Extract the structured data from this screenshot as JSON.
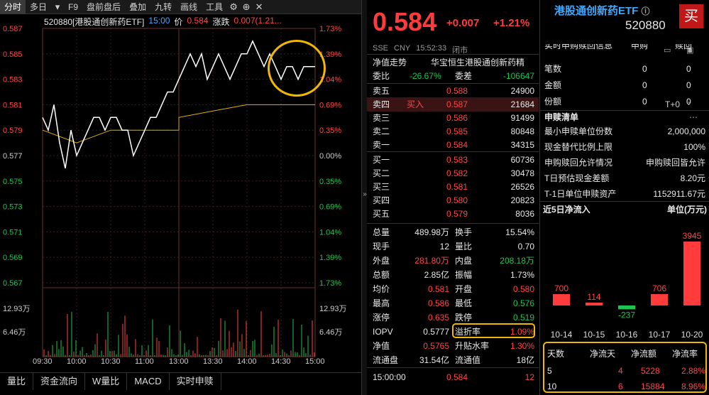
{
  "toolbar": {
    "items": [
      "分时",
      "多日",
      "F9",
      "盘前盘后",
      "叠加",
      "九转",
      "画线",
      "工具"
    ],
    "active": "分时"
  },
  "chart_header": {
    "name": "520880[港股通创新药ETF]",
    "time": "15:00",
    "price_label": "价",
    "price": "0.584",
    "change_label": "涨跌",
    "change": "0.007(1.21..."
  },
  "chart_data": {
    "type": "line",
    "x_ticks": [
      "09:30",
      "10:00",
      "10:30",
      "11:00",
      "13:00",
      "13:30",
      "14:00",
      "14:30",
      "15:00"
    ],
    "y_left_ticks": [
      "0.587",
      "0.585",
      "0.583",
      "0.581",
      "0.579",
      "0.577",
      "0.575",
      "0.573",
      "0.571",
      "0.569",
      "0.567"
    ],
    "y_right_ticks": [
      "1.73%",
      "1.39%",
      "1.04%",
      "0.69%",
      "0.35%",
      "0.00%",
      "0.35%",
      "0.69%",
      "1.04%",
      "1.39%",
      "1.73%"
    ],
    "ylim": [
      0.567,
      0.587
    ],
    "prev_close": 0.577,
    "volume_ticks": [
      "12.93万",
      "6.46万"
    ],
    "series": [
      {
        "name": "价",
        "color": "#ffffff",
        "x": [
          "09:30",
          "09:35",
          "09:40",
          "09:45",
          "09:50",
          "09:55",
          "10:00",
          "10:05",
          "10:10",
          "10:15",
          "10:20",
          "10:25",
          "10:30",
          "10:35",
          "10:40",
          "10:45",
          "10:50",
          "10:55",
          "11:00",
          "11:05",
          "11:10",
          "11:15",
          "11:20",
          "11:25",
          "13:00",
          "13:05",
          "13:10",
          "13:15",
          "13:20",
          "13:25",
          "13:30",
          "13:35",
          "13:40",
          "13:45",
          "13:50",
          "13:55",
          "14:00",
          "14:05",
          "14:10",
          "14:15",
          "14:20",
          "14:25",
          "14:30",
          "14:35",
          "14:40",
          "14:45",
          "14:50",
          "14:55",
          "15:00"
        ],
        "values": [
          0.58,
          0.579,
          0.581,
          0.578,
          0.576,
          0.579,
          0.577,
          0.578,
          0.579,
          0.58,
          0.58,
          0.579,
          0.58,
          0.58,
          0.579,
          0.579,
          0.577,
          0.578,
          0.579,
          0.58,
          0.58,
          0.581,
          0.582,
          0.582,
          0.583,
          0.584,
          0.585,
          0.584,
          0.585,
          0.583,
          0.584,
          0.585,
          0.584,
          0.583,
          0.584,
          0.585,
          0.585,
          0.586,
          0.585,
          0.584,
          0.585,
          0.584,
          0.583,
          0.584,
          0.584,
          0.583,
          0.584,
          0.584,
          0.584
        ]
      },
      {
        "name": "均价",
        "color": "#e0b000",
        "x": [
          "09:30",
          "10:00",
          "10:30",
          "11:00",
          "11:30",
          "13:00",
          "13:30",
          "14:00",
          "14:30",
          "15:00"
        ],
        "values": [
          0.579,
          0.578,
          0.579,
          0.579,
          0.579,
          0.58,
          0.5805,
          0.581,
          0.581,
          0.581
        ]
      }
    ]
  },
  "bottom_tabs": [
    "量比",
    "资金流向",
    "W量比",
    "MACD",
    "实时申赎"
  ],
  "quote": {
    "price": "0.584",
    "change": "+0.007",
    "change_pct": "+1.21%",
    "exchange": "SSE",
    "currency": "CNY",
    "time": "15:52:33",
    "status": "闭市",
    "nav_trend_label": "净值走势",
    "nav_trend_value": "华宝恒生港股通创新药精",
    "weibi_label": "委比",
    "weibi": "-26.67%",
    "weicha_label": "委差",
    "weicha": "-106647",
    "asks": [
      {
        "label": "卖五",
        "price": "0.588",
        "vol": "24900",
        "tag": ""
      },
      {
        "label": "卖四",
        "price": "0.587",
        "vol": "21684",
        "tag": "买入"
      },
      {
        "label": "卖三",
        "price": "0.586",
        "vol": "91499",
        "tag": ""
      },
      {
        "label": "卖二",
        "price": "0.585",
        "vol": "80848",
        "tag": ""
      },
      {
        "label": "卖一",
        "price": "0.584",
        "vol": "34315",
        "tag": ""
      }
    ],
    "bids": [
      {
        "label": "买一",
        "price": "0.583",
        "vol": "60736"
      },
      {
        "label": "买二",
        "price": "0.582",
        "vol": "30478"
      },
      {
        "label": "买三",
        "price": "0.581",
        "vol": "26526"
      },
      {
        "label": "买四",
        "price": "0.580",
        "vol": "20823"
      },
      {
        "label": "买五",
        "price": "0.579",
        "vol": "8036"
      }
    ],
    "stats": [
      {
        "l1": "总量",
        "v1": "489.98万",
        "c1": "white",
        "l2": "换手",
        "v2": "15.54%",
        "c2": "white"
      },
      {
        "l1": "现手",
        "v1": "12",
        "c1": "white",
        "l2": "量比",
        "v2": "0.70",
        "c2": "white"
      },
      {
        "l1": "外盘",
        "v1": "281.80万",
        "c1": "red",
        "l2": "内盘",
        "v2": "208.18万",
        "c2": "green"
      },
      {
        "l1": "总额",
        "v1": "2.85亿",
        "c1": "white",
        "l2": "振幅",
        "v2": "1.73%",
        "c2": "white"
      },
      {
        "l1": "均价",
        "v1": "0.581",
        "c1": "red",
        "l2": "开盘",
        "v2": "0.580",
        "c2": "red"
      },
      {
        "l1": "最高",
        "v1": "0.586",
        "c1": "red",
        "l2": "最低",
        "v2": "0.576",
        "c2": "green"
      },
      {
        "l1": "涨停",
        "v1": "0.635",
        "c1": "red",
        "l2": "跌停",
        "v2": "0.519",
        "c2": "green"
      },
      {
        "l1": "IOPV",
        "v1": "0.5777",
        "c1": "white",
        "l2": "溢折率",
        "v2": "1.09%",
        "c2": "red"
      },
      {
        "l1": "净值",
        "v1": "0.5765",
        "c1": "red",
        "l2": "升贴水率",
        "v2": "1.30%",
        "c2": "red"
      },
      {
        "l1": "流通盘",
        "v1": "31.54亿",
        "c1": "white",
        "l2": "流通值",
        "v2": "18亿",
        "c2": "white"
      }
    ],
    "last_trade": {
      "time": "15:00:00",
      "price": "0.584",
      "vol": "12"
    }
  },
  "etf": {
    "name": "港股通创新药ETF",
    "code": "520880",
    "buy_label": "买",
    "section_head": [
      "实时申购赎回信息",
      "申购",
      "赎回"
    ],
    "realtime": [
      {
        "label": "笔数",
        "sub": "0",
        "red": "0"
      },
      {
        "label": "金额",
        "sub": "0",
        "red": "0"
      },
      {
        "label": "份额",
        "sub": "0",
        "red": "0"
      }
    ],
    "list_title": "申赎清单",
    "t_plus": "T+0",
    "list": [
      {
        "label": "最小申赎单位份数",
        "value": "2,000,000"
      },
      {
        "label": "现金替代比例上限",
        "value": "100%"
      },
      {
        "label": "申购赎回允许情况",
        "value": "申购赎回皆允许"
      },
      {
        "label": "T日预估现金差额",
        "value": "8.20元"
      },
      {
        "label": "T-1日单位申赎资产",
        "value": "1152911.67元"
      }
    ],
    "flow_title": "近5日净流入",
    "flow_unit": "单位(万元)",
    "flow_chart": {
      "type": "bar",
      "categories": [
        "10-14",
        "10-15",
        "10-16",
        "10-17",
        "10-20"
      ],
      "values": [
        700,
        114,
        -237,
        706,
        3945
      ]
    },
    "flow_table": {
      "headers": [
        "天数",
        "净流天",
        "净流额",
        "净流率"
      ],
      "rows": [
        {
          "days": "5",
          "inflow_days": "4",
          "amount": "5228",
          "rate": "2.88%"
        },
        {
          "days": "10",
          "inflow_days": "6",
          "amount": "15884",
          "rate": "8.96%"
        }
      ]
    }
  }
}
